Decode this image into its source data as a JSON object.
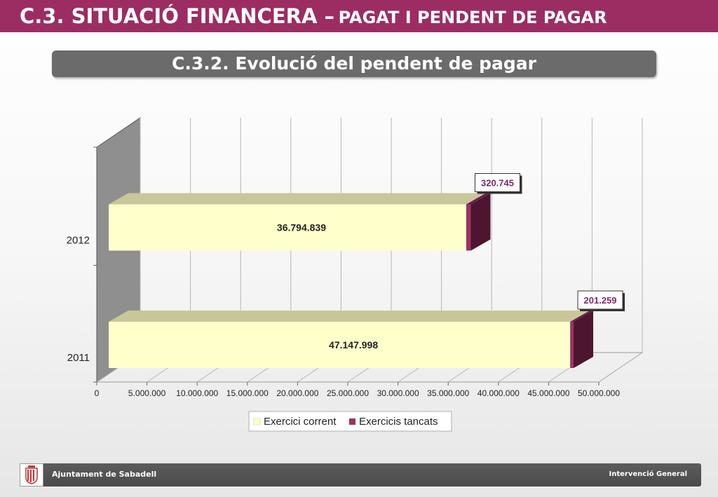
{
  "header": {
    "title_main": "C.3. SITUACIÓ FINANCERA –",
    "title_sub": "PAGAT I PENDENT DE PAGAR",
    "subtitle": "C.3.2. Evolució del pendent de pagar"
  },
  "chart_data": {
    "type": "bar",
    "orientation": "horizontal",
    "stacked": true,
    "categories": [
      "2012",
      "2011"
    ],
    "series": [
      {
        "name": "Exercici corrent",
        "values": [
          36794839,
          47147998
        ],
        "labels": [
          "36.794.839",
          "47.147.998"
        ],
        "color": "#ffffcc"
      },
      {
        "name": "Exercicis tancats",
        "values": [
          320745,
          201259
        ],
        "labels": [
          "320.745",
          "201.259"
        ],
        "color": "#993366"
      }
    ],
    "xlim": [
      0,
      50000000
    ],
    "xticks": [
      "0",
      "5.000.000",
      "10.000.000",
      "15.000.000",
      "20.000.000",
      "25.000.000",
      "30.000.000",
      "35.000.000",
      "40.000.000",
      "45.000.000",
      "50.000.000"
    ],
    "grid": true,
    "legend": "bottom",
    "label_color_closed": "#7a2a6a"
  },
  "footer": {
    "org": "Ajuntament de Sabadell",
    "dept": "Intervenció General"
  }
}
